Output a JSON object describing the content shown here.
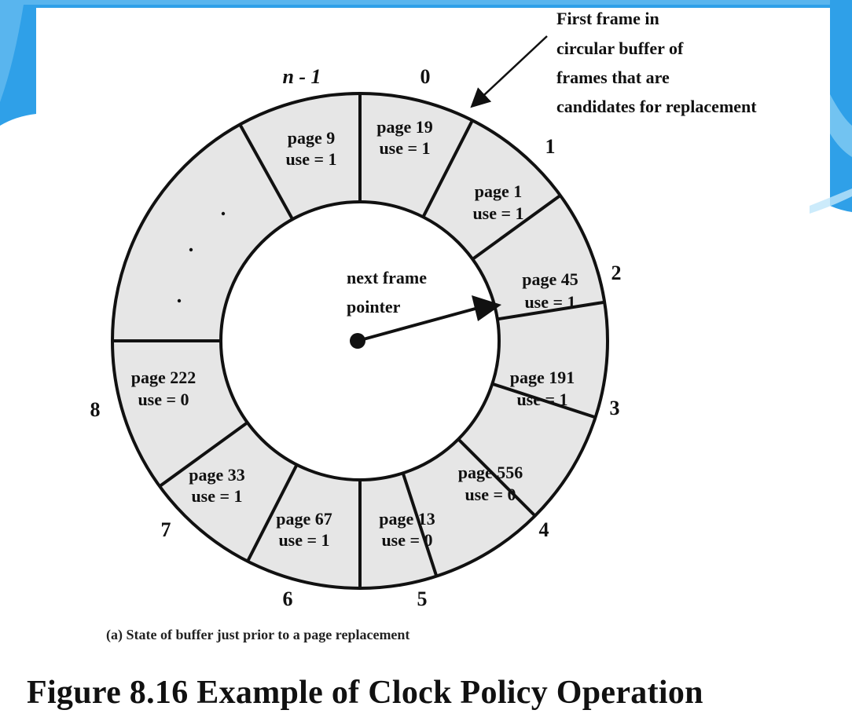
{
  "figure_title": "Figure 8.16   Example of Clock Policy Operation",
  "caption": "(a) State of buffer just prior to a page replacement",
  "callout": [
    "First frame in",
    "circular buffer of",
    "frames that are",
    "candidates for replacement"
  ],
  "pointer_label": [
    "next frame",
    "pointer"
  ],
  "slots": [
    {
      "index": "0",
      "page": "page 19",
      "use": "use = 1"
    },
    {
      "index": "1",
      "page": "page 1",
      "use": "use = 1"
    },
    {
      "index": "2",
      "page": "page 45",
      "use": "use = 1"
    },
    {
      "index": "3",
      "page": "page 191",
      "use": "use = 1"
    },
    {
      "index": "4",
      "page": "page 556",
      "use": "use = 0"
    },
    {
      "index": "5",
      "page": "page 13",
      "use": "use = 0"
    },
    {
      "index": "6",
      "page": "page 67",
      "use": "use = 1"
    },
    {
      "index": "7",
      "page": "page 33",
      "use": "use = 1"
    },
    {
      "index": "8",
      "page": "page 222",
      "use": "use = 0"
    },
    {
      "index": "",
      "page": "",
      "use": ""
    },
    {
      "index": "n - 1",
      "page": "page 9",
      "use": "use = 1"
    }
  ],
  "colors": {
    "ring_fill": "#e6e6e6",
    "stroke": "#111111",
    "banner": "#2fa0e8"
  }
}
